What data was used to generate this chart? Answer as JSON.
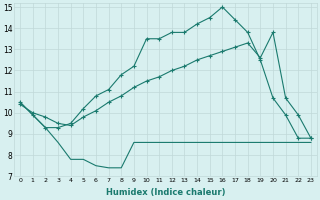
{
  "line_top_x": [
    0,
    1,
    2,
    3,
    4,
    5,
    6,
    7,
    8,
    9,
    10,
    11,
    12,
    13,
    14,
    15,
    16,
    17,
    18,
    19,
    20,
    21,
    22,
    23
  ],
  "line_top_y": [
    10.5,
    9.9,
    9.3,
    9.3,
    9.5,
    10.2,
    10.8,
    11.1,
    11.8,
    12.2,
    13.5,
    13.5,
    13.8,
    13.8,
    14.2,
    14.5,
    15.0,
    14.4,
    13.8,
    12.5,
    10.7,
    9.9,
    8.8,
    8.8
  ],
  "line_mid_x": [
    0,
    1,
    2,
    3,
    4,
    5,
    6,
    7,
    8,
    9,
    10,
    11,
    12,
    13,
    14,
    15,
    16,
    17,
    18,
    19,
    20,
    21,
    22,
    23
  ],
  "line_mid_y": [
    10.4,
    10.0,
    9.8,
    9.5,
    9.4,
    9.8,
    10.1,
    10.5,
    10.8,
    11.2,
    11.5,
    11.7,
    12.0,
    12.2,
    12.5,
    12.7,
    12.9,
    13.1,
    13.3,
    12.6,
    13.8,
    10.7,
    9.9,
    8.8
  ],
  "line_bot_x": [
    0,
    1,
    2,
    3,
    4,
    5,
    6,
    7,
    8,
    9,
    10,
    11,
    12,
    13,
    14,
    15,
    16,
    17,
    18,
    19,
    20,
    21,
    22,
    23
  ],
  "line_bot_y": [
    10.5,
    9.9,
    9.3,
    8.6,
    7.8,
    7.8,
    7.5,
    7.4,
    7.4,
    8.6,
    8.6,
    8.6,
    8.6,
    8.6,
    8.6,
    8.6,
    8.6,
    8.6,
    8.6,
    8.6,
    8.6,
    8.6,
    8.6,
    8.6
  ],
  "line_color": "#1a7a6e",
  "bg_color": "#d8f0f0",
  "grid_color": "#c0d8d8",
  "xlim": [
    -0.5,
    23.5
  ],
  "ylim": [
    7,
    15.2
  ],
  "yticks": [
    7,
    8,
    9,
    10,
    11,
    12,
    13,
    14,
    15
  ],
  "xticks": [
    0,
    1,
    2,
    3,
    4,
    5,
    6,
    7,
    8,
    9,
    10,
    11,
    12,
    13,
    14,
    15,
    16,
    17,
    18,
    19,
    20,
    21,
    22,
    23
  ],
  "xlabel": "Humidex (Indice chaleur)"
}
